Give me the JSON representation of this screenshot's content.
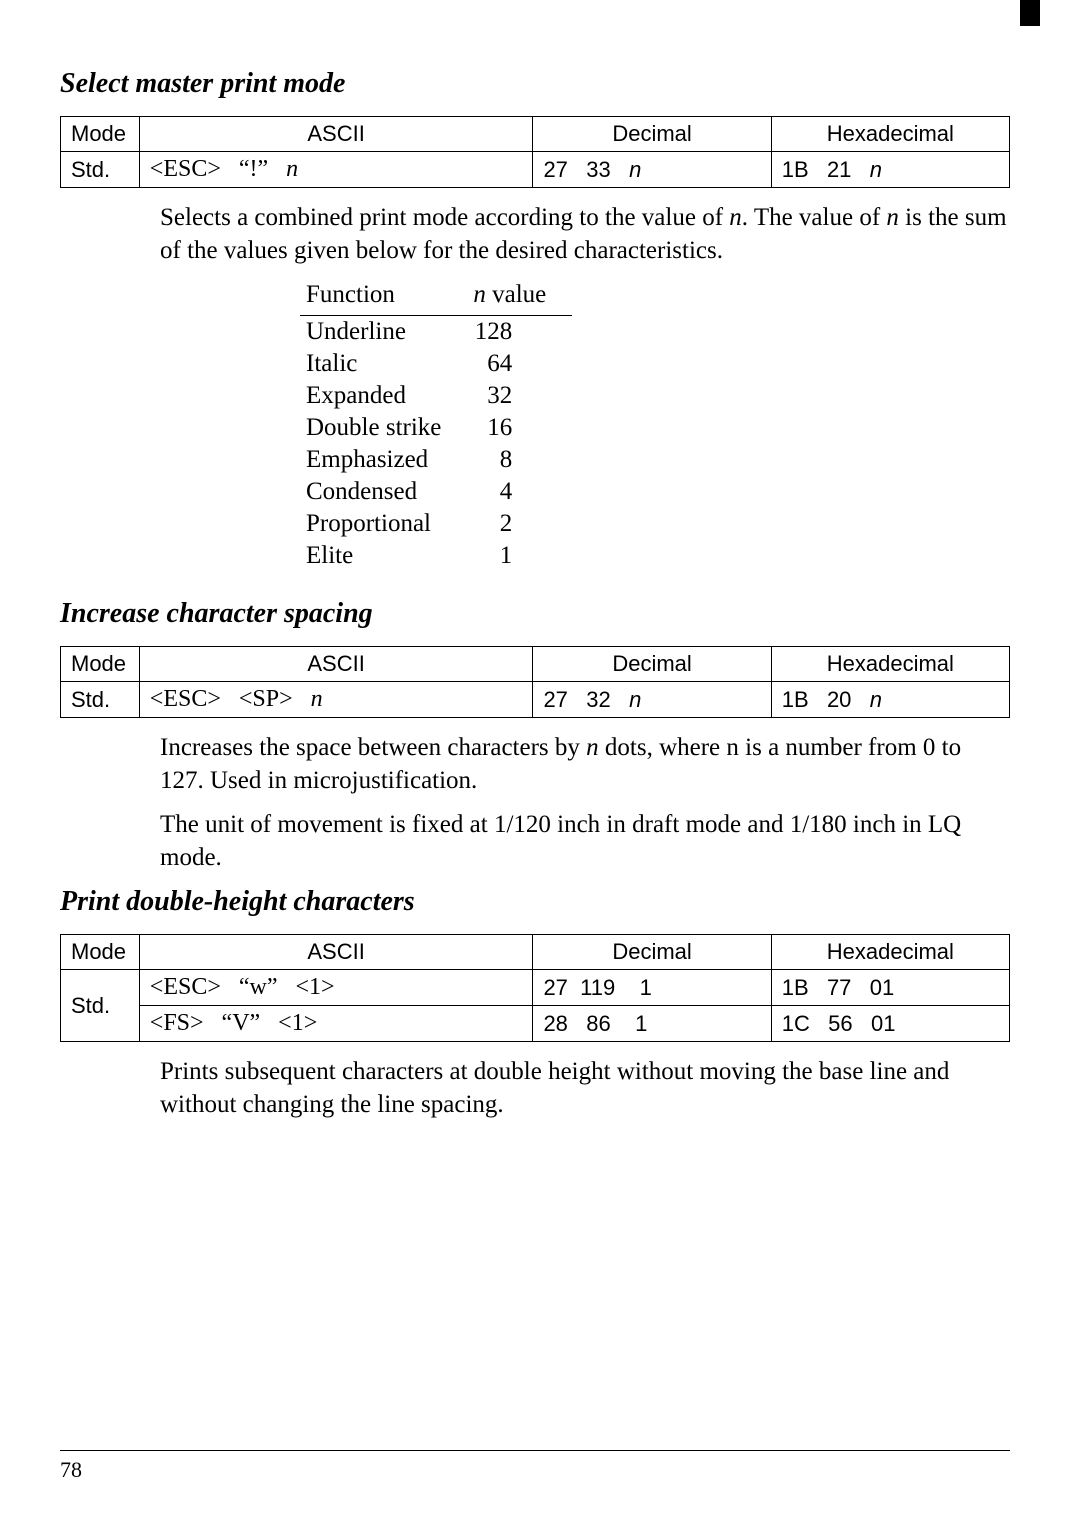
{
  "sections": [
    {
      "title": "Select master print mode",
      "tableHeaders": {
        "mode": "Mode",
        "ascii": "ASCII",
        "decimal": "Decimal",
        "hex": "Hexadecimal"
      },
      "rows": [
        {
          "mode": "Std.",
          "ascii_parts": [
            "<ESC>",
            "“!”"
          ],
          "ascii_n": true,
          "dec": "27   33",
          "dec_n": true,
          "hex": "1B   21",
          "hex_n": true
        }
      ],
      "body": [
        {
          "spans": [
            {
              "t": "Selects a combined print mode according to the value of "
            },
            {
              "t": "n",
              "i": true
            },
            {
              "t": ". The value of "
            },
            {
              "t": "n",
              "i": true
            },
            {
              "t": " is the sum of the values given below for the desired characteristics."
            }
          ]
        }
      ],
      "funcTable": {
        "header": {
          "func": "Function",
          "nval_pre": "n",
          "nval_post": " value"
        },
        "rows": [
          {
            "f": "Underline",
            "v": "128"
          },
          {
            "f": "Italic",
            "v": "64"
          },
          {
            "f": "Expanded",
            "v": "32"
          },
          {
            "f": "Double strike",
            "v": "16"
          },
          {
            "f": "Emphasized",
            "v": "8"
          },
          {
            "f": "Condensed",
            "v": "4"
          },
          {
            "f": "Proportional",
            "v": "2"
          },
          {
            "f": "Elite",
            "v": "1"
          }
        ]
      }
    },
    {
      "title": "Increase character spacing",
      "tableHeaders": {
        "mode": "Mode",
        "ascii": "ASCII",
        "decimal": "Decimal",
        "hex": "Hexadecimal"
      },
      "rows": [
        {
          "mode": "Std.",
          "ascii_parts": [
            "<ESC>",
            "<SP>"
          ],
          "ascii_n": true,
          "dec": "27   32",
          "dec_n": true,
          "hex": "1B   20",
          "hex_n": true
        }
      ],
      "body": [
        {
          "spans": [
            {
              "t": "Increases the space between characters by "
            },
            {
              "t": "n",
              "i": true
            },
            {
              "t": " dots, where n is a number from 0 to 127. Used in microjustification."
            }
          ]
        },
        {
          "spans": [
            {
              "t": "The unit of movement is fixed at 1/120 inch in draft mode and 1/180 inch in LQ mode."
            }
          ]
        }
      ]
    },
    {
      "title": "Print double-height characters",
      "tableHeaders": {
        "mode": "Mode",
        "ascii": "ASCII",
        "decimal": "Decimal",
        "hex": "Hexadecimal"
      },
      "modeRowspan": 2,
      "rows": [
        {
          "mode": "Std.",
          "ascii_parts": [
            "<ESC>",
            "“w”",
            "<1>"
          ],
          "ascii_n": false,
          "dec": "27  119    1",
          "dec_n": false,
          "hex": "1B   77   01",
          "hex_n": false
        },
        {
          "ascii_parts": [
            "<FS>",
            "“V”",
            "<1>"
          ],
          "ascii_n": false,
          "dec": "28   86    1",
          "dec_n": false,
          "hex": "1C   56   01",
          "hex_n": false
        }
      ],
      "body": [
        {
          "spans": [
            {
              "t": "Prints subsequent characters at double height without moving the base line and without changing the line spacing."
            }
          ]
        }
      ]
    }
  ],
  "pageNumber": "78"
}
